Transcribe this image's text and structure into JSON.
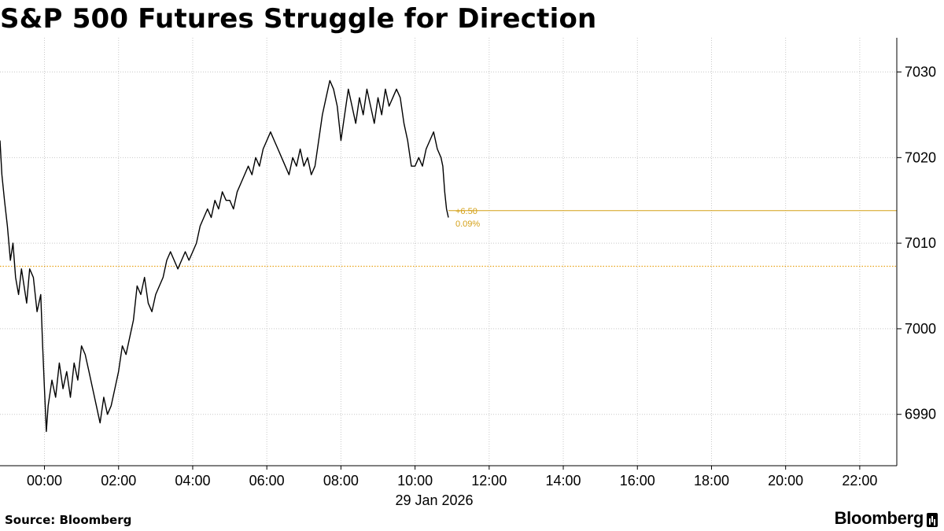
{
  "chart_data": {
    "type": "line",
    "title": "S&P 500 Futures Struggle for Direction",
    "source": "Source: Bloomberg",
    "brand": "Bloomberg",
    "date_label": "29 Jan 2026",
    "x_axis": {
      "range_hours": [
        -1.2,
        23.0
      ],
      "ticks": [
        0,
        2,
        4,
        6,
        8,
        10,
        12,
        14,
        16,
        18,
        20,
        22
      ],
      "tick_labels": [
        "00:00",
        "02:00",
        "04:00",
        "06:00",
        "08:00",
        "10:00",
        "12:00",
        "14:00",
        "16:00",
        "18:00",
        "20:00",
        "22:00"
      ]
    },
    "y_axis": {
      "range": [
        6984,
        7034
      ],
      "position": "right",
      "ticks": [
        6990,
        7000,
        7010,
        7020,
        7030
      ],
      "tick_labels": [
        "6990",
        "7000",
        "7010",
        "7020",
        "7030"
      ]
    },
    "grid": true,
    "reference_line": {
      "value": 7007.3,
      "style": "dotted",
      "color": "#e8a317"
    },
    "last_price_line": {
      "value": 7013.8,
      "color": "#d4a017"
    },
    "annotation": {
      "change": "+6.50",
      "pct": "0.09%"
    },
    "series": [
      {
        "color": "#000000",
        "points": [
          [
            -1.2,
            7022
          ],
          [
            -1.15,
            7018
          ],
          [
            -1.08,
            7015
          ],
          [
            -1.0,
            7012
          ],
          [
            -0.92,
            7008
          ],
          [
            -0.85,
            7010
          ],
          [
            -0.78,
            7006
          ],
          [
            -0.7,
            7004
          ],
          [
            -0.62,
            7007
          ],
          [
            -0.55,
            7005
          ],
          [
            -0.48,
            7003
          ],
          [
            -0.4,
            7007
          ],
          [
            -0.3,
            7006
          ],
          [
            -0.2,
            7002
          ],
          [
            -0.1,
            7004
          ],
          [
            -0.05,
            6998
          ],
          [
            0.0,
            6993
          ],
          [
            0.05,
            6988
          ],
          [
            0.1,
            6991
          ],
          [
            0.2,
            6994
          ],
          [
            0.3,
            6992
          ],
          [
            0.4,
            6996
          ],
          [
            0.5,
            6993
          ],
          [
            0.6,
            6995
          ],
          [
            0.7,
            6992
          ],
          [
            0.8,
            6996
          ],
          [
            0.9,
            6994
          ],
          [
            1.0,
            6998
          ],
          [
            1.1,
            6997
          ],
          [
            1.2,
            6995
          ],
          [
            1.3,
            6993
          ],
          [
            1.4,
            6991
          ],
          [
            1.5,
            6989
          ],
          [
            1.6,
            6992
          ],
          [
            1.7,
            6990
          ],
          [
            1.8,
            6991
          ],
          [
            1.9,
            6993
          ],
          [
            2.0,
            6995
          ],
          [
            2.1,
            6998
          ],
          [
            2.2,
            6997
          ],
          [
            2.3,
            6999
          ],
          [
            2.4,
            7001
          ],
          [
            2.5,
            7005
          ],
          [
            2.6,
            7004
          ],
          [
            2.7,
            7006
          ],
          [
            2.8,
            7003
          ],
          [
            2.9,
            7002
          ],
          [
            3.0,
            7004
          ],
          [
            3.1,
            7005
          ],
          [
            3.2,
            7006
          ],
          [
            3.3,
            7008
          ],
          [
            3.4,
            7009
          ],
          [
            3.5,
            7008
          ],
          [
            3.6,
            7007
          ],
          [
            3.7,
            7008
          ],
          [
            3.8,
            7009
          ],
          [
            3.9,
            7008
          ],
          [
            4.0,
            7009
          ],
          [
            4.1,
            7010
          ],
          [
            4.2,
            7012
          ],
          [
            4.3,
            7013
          ],
          [
            4.4,
            7014
          ],
          [
            4.5,
            7013
          ],
          [
            4.6,
            7015
          ],
          [
            4.7,
            7014
          ],
          [
            4.8,
            7016
          ],
          [
            4.9,
            7015
          ],
          [
            5.0,
            7015
          ],
          [
            5.1,
            7014
          ],
          [
            5.2,
            7016
          ],
          [
            5.3,
            7017
          ],
          [
            5.4,
            7018
          ],
          [
            5.5,
            7019
          ],
          [
            5.6,
            7018
          ],
          [
            5.7,
            7020
          ],
          [
            5.8,
            7019
          ],
          [
            5.9,
            7021
          ],
          [
            6.0,
            7022
          ],
          [
            6.1,
            7023
          ],
          [
            6.2,
            7022
          ],
          [
            6.3,
            7021
          ],
          [
            6.4,
            7020
          ],
          [
            6.5,
            7019
          ],
          [
            6.6,
            7018
          ],
          [
            6.7,
            7020
          ],
          [
            6.8,
            7019
          ],
          [
            6.9,
            7021
          ],
          [
            7.0,
            7019
          ],
          [
            7.1,
            7020
          ],
          [
            7.2,
            7018
          ],
          [
            7.3,
            7019
          ],
          [
            7.4,
            7022
          ],
          [
            7.5,
            7025
          ],
          [
            7.6,
            7027
          ],
          [
            7.7,
            7029
          ],
          [
            7.8,
            7028
          ],
          [
            7.9,
            7026
          ],
          [
            8.0,
            7022
          ],
          [
            8.1,
            7025
          ],
          [
            8.2,
            7028
          ],
          [
            8.3,
            7026
          ],
          [
            8.4,
            7024
          ],
          [
            8.5,
            7027
          ],
          [
            8.6,
            7025
          ],
          [
            8.7,
            7028
          ],
          [
            8.8,
            7026
          ],
          [
            8.9,
            7024
          ],
          [
            9.0,
            7027
          ],
          [
            9.1,
            7025
          ],
          [
            9.2,
            7028
          ],
          [
            9.3,
            7026
          ],
          [
            9.4,
            7027
          ],
          [
            9.5,
            7028
          ],
          [
            9.6,
            7027
          ],
          [
            9.7,
            7024
          ],
          [
            9.8,
            7022
          ],
          [
            9.9,
            7019
          ],
          [
            10.0,
            7019
          ],
          [
            10.1,
            7020
          ],
          [
            10.2,
            7019
          ],
          [
            10.3,
            7021
          ],
          [
            10.4,
            7022
          ],
          [
            10.5,
            7023
          ],
          [
            10.6,
            7021
          ],
          [
            10.7,
            7020
          ],
          [
            10.75,
            7019
          ],
          [
            10.8,
            7016
          ],
          [
            10.85,
            7014
          ],
          [
            10.9,
            7013
          ]
        ]
      }
    ]
  }
}
